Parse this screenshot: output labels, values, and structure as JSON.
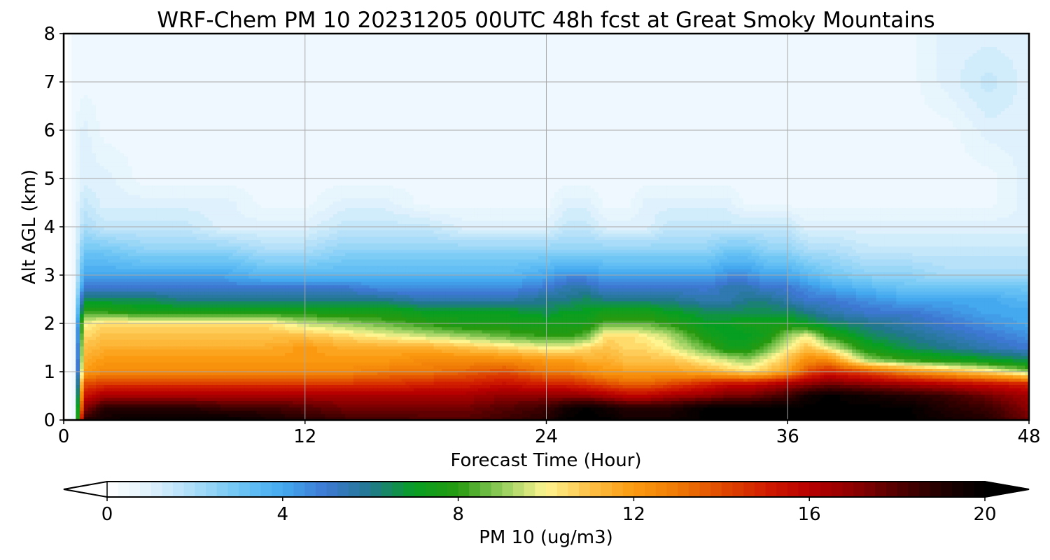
{
  "chart_data": {
    "type": "heatmap",
    "title": "WRF-Chem PM 10  20231205 00UTC 48h fcst at Great Smoky Mountains",
    "xlabel": "Forecast Time (Hour)",
    "ylabel": "Alt AGL (km)",
    "xlim": [
      0,
      48
    ],
    "ylim": [
      0,
      8
    ],
    "x_ticks": [
      0,
      12,
      24,
      36,
      48
    ],
    "y_ticks": [
      0,
      1,
      2,
      3,
      4,
      5,
      6,
      7,
      8
    ],
    "grid": true,
    "colorbar": {
      "label": "PM 10  (ug/m3)",
      "orientation": "horizontal",
      "placement": "bottom",
      "range": [
        0,
        20
      ],
      "ticks": [
        0,
        4,
        8,
        12,
        16,
        20
      ],
      "extend": "both",
      "color_stops": [
        {
          "value": 0,
          "color": "#ffffff"
        },
        {
          "value": 1,
          "color": "#dff1fc"
        },
        {
          "value": 2,
          "color": "#a8dcf8"
        },
        {
          "value": 3,
          "color": "#6fc6f5"
        },
        {
          "value": 4,
          "color": "#44a9ef"
        },
        {
          "value": 5,
          "color": "#3d78d2"
        },
        {
          "value": 6,
          "color": "#21788e"
        },
        {
          "value": 7,
          "color": "#079f22"
        },
        {
          "value": 8,
          "color": "#279a10"
        },
        {
          "value": 9,
          "color": "#93cd5e"
        },
        {
          "value": 10,
          "color": "#fff590"
        },
        {
          "value": 11,
          "color": "#fdc046"
        },
        {
          "value": 12,
          "color": "#fb9a10"
        },
        {
          "value": 13,
          "color": "#ef7a05"
        },
        {
          "value": 14,
          "color": "#e04a00"
        },
        {
          "value": 15,
          "color": "#d11d00"
        },
        {
          "value": 16,
          "color": "#b80000"
        },
        {
          "value": 17,
          "color": "#8e0000"
        },
        {
          "value": 18,
          "color": "#520000"
        },
        {
          "value": 19,
          "color": "#220000"
        },
        {
          "value": 20,
          "color": "#000000"
        }
      ]
    },
    "time_hours": [
      0,
      0.5,
      1,
      2,
      4,
      6,
      8,
      10,
      12,
      14,
      16,
      18,
      20,
      22,
      24,
      25,
      26,
      27,
      28,
      29,
      30,
      32,
      33,
      34,
      35,
      36,
      37,
      38,
      40,
      42,
      44,
      46,
      48
    ],
    "altitude_km": [
      0,
      0.25,
      0.5,
      0.75,
      1,
      1.25,
      1.5,
      1.75,
      2,
      2.25,
      2.5,
      2.75,
      3,
      3.5,
      4,
      4.5,
      5,
      6,
      7,
      8
    ],
    "pm10_ugm3": [
      [
        0,
        0.5,
        19,
        19.5,
        20,
        20,
        20,
        19.5,
        19,
        18.5,
        18.5,
        18,
        18,
        18.5,
        19,
        20,
        20,
        20,
        19.5,
        19.5,
        19.5,
        20,
        20,
        20,
        20,
        20,
        20,
        20,
        20,
        20,
        19.5,
        19,
        17.5
      ],
      [
        0,
        0.5,
        17,
        19,
        19,
        19,
        18.5,
        18.5,
        18,
        17.5,
        17.5,
        17.5,
        17.5,
        18,
        18.5,
        19.5,
        20,
        19.5,
        19,
        19,
        19,
        20,
        20,
        20,
        20,
        20,
        20,
        20,
        20,
        20,
        19,
        18.5,
        17
      ],
      [
        0,
        0.5,
        15.5,
        16.5,
        16.5,
        16.5,
        16.5,
        16.5,
        16.5,
        16.5,
        16.5,
        16.5,
        16.5,
        17,
        17,
        17,
        17,
        16.5,
        16,
        16,
        16.5,
        17,
        17.5,
        17.5,
        18,
        18.5,
        19.5,
        20,
        19.5,
        19,
        18.5,
        17.5,
        16.5
      ],
      [
        0,
        0.5,
        14,
        14.5,
        14.5,
        14.5,
        14.5,
        14.5,
        14.5,
        14.5,
        14.5,
        15,
        15,
        15.5,
        15,
        15,
        14.5,
        14,
        13.5,
        13.5,
        14,
        15,
        15.5,
        15.5,
        16,
        16.5,
        17,
        17.5,
        17,
        16.5,
        16,
        15.5,
        15
      ],
      [
        0,
        0.5,
        12,
        12.5,
        12.5,
        12.5,
        12.5,
        12.5,
        12.5,
        12.5,
        13,
        13,
        13.5,
        14,
        13,
        13,
        12.5,
        12,
        12,
        12,
        12,
        11.5,
        11,
        10.5,
        11,
        12,
        14,
        15,
        14,
        12.5,
        11.5,
        10.5,
        9
      ],
      [
        0,
        0.5,
        11.5,
        12,
        12,
        12,
        12,
        12,
        12,
        12,
        12,
        12.5,
        12.5,
        12.5,
        12,
        12,
        11.5,
        11.5,
        11,
        11,
        11,
        10,
        9.5,
        9,
        10,
        11,
        12.5,
        12.5,
        9,
        8,
        7.5,
        7,
        6.5
      ],
      [
        0,
        0.5,
        11,
        11.5,
        11.5,
        11.5,
        11.5,
        11.5,
        12,
        11.5,
        11.5,
        11.5,
        11,
        10.5,
        10,
        10,
        10.5,
        11,
        10.5,
        10.5,
        10,
        8.5,
        7.5,
        7.5,
        8.5,
        10,
        11,
        10,
        7.5,
        6.5,
        6,
        5.5,
        5
      ],
      [
        0,
        0.5,
        10.5,
        11,
        11,
        11,
        11,
        11,
        11,
        10.5,
        10,
        9.5,
        9,
        8.5,
        8,
        8,
        8.5,
        10.5,
        10.5,
        10,
        9.5,
        7.5,
        7,
        7,
        7.5,
        9,
        10,
        8,
        6.5,
        6,
        5.5,
        5,
        4.5
      ],
      [
        0,
        0.5,
        10,
        10.5,
        10.5,
        10.5,
        10.5,
        10.5,
        9.5,
        9,
        8.5,
        8,
        7.5,
        7.5,
        7.5,
        7.5,
        7.5,
        8.5,
        8.5,
        8.5,
        8,
        7,
        7,
        7.5,
        7.5,
        7.5,
        7,
        6.5,
        6,
        5.5,
        5,
        4.5,
        4
      ],
      [
        0,
        0.5,
        8,
        8,
        7.5,
        7.5,
        7.5,
        7.5,
        7.5,
        7.5,
        7.5,
        7,
        7,
        7,
        6.5,
        7,
        7,
        7.5,
        7.5,
        7.5,
        7,
        6.5,
        6.5,
        6.5,
        6.5,
        6.5,
        6,
        5.5,
        5,
        5,
        4.5,
        4,
        4
      ],
      [
        0,
        0.5,
        6.5,
        6.5,
        6.5,
        6,
        6,
        6,
        6,
        6,
        6,
        5.5,
        5.5,
        5.5,
        6,
        6,
        6.5,
        6,
        6,
        6,
        6,
        5.5,
        5.5,
        6,
        6,
        5.5,
        5,
        5,
        4.5,
        4,
        4,
        4,
        3.5
      ],
      [
        0,
        0.5,
        5,
        5,
        5,
        5,
        5,
        5,
        5,
        5,
        4.5,
        4.5,
        4.5,
        4.5,
        5,
        5.5,
        5.5,
        5,
        5,
        5,
        5,
        5,
        5.5,
        5.5,
        5,
        5,
        4.5,
        4,
        3.5,
        3,
        3,
        3,
        3
      ],
      [
        0,
        0.5,
        4,
        4,
        4,
        4,
        4,
        3.5,
        3.5,
        3.5,
        3.5,
        3.5,
        3.5,
        3.5,
        4,
        4.5,
        4.5,
        4,
        4,
        4,
        4,
        4,
        4.5,
        4.5,
        4,
        4,
        3.5,
        3,
        2.5,
        2.5,
        2,
        2,
        2
      ],
      [
        0,
        0.5,
        3,
        3,
        2.5,
        2.5,
        2.5,
        2,
        2,
        2.5,
        2.5,
        2.5,
        2.5,
        2.5,
        2.5,
        2.5,
        2.5,
        2.5,
        2.5,
        2.5,
        2.5,
        2.5,
        3,
        3,
        2.5,
        2.5,
        2,
        2,
        1.5,
        1.5,
        1.5,
        1.5,
        1.5
      ],
      [
        0,
        0.5,
        2,
        1.5,
        1.5,
        1.5,
        1,
        1,
        1,
        1.5,
        1.5,
        1.5,
        1,
        1,
        1,
        1.5,
        1.5,
        1,
        1,
        1,
        1.5,
        1.5,
        1.5,
        1.5,
        1.5,
        1.5,
        1,
        1,
        1,
        1,
        1,
        1,
        1
      ],
      [
        0,
        0.5,
        1.5,
        1,
        1,
        1,
        1,
        0.5,
        0.5,
        1,
        1,
        0.5,
        0.5,
        0.5,
        0.5,
        1,
        1,
        0.5,
        0.5,
        1,
        1,
        1,
        1,
        0.5,
        0.5,
        0.5,
        0.5,
        0.5,
        0.5,
        0.5,
        0.5,
        0.5,
        1
      ],
      [
        0,
        0.5,
        1,
        1,
        0.5,
        0.5,
        0.5,
        0.5,
        0.5,
        0.5,
        0.5,
        0.5,
        0.5,
        0.5,
        0.5,
        0.5,
        0.5,
        0.5,
        0.5,
        0.5,
        0.5,
        0.5,
        0.5,
        0.5,
        0.5,
        0.5,
        0.5,
        0.5,
        0.5,
        0.5,
        0.5,
        0.5,
        1
      ],
      [
        0,
        0.5,
        1,
        0.5,
        0.5,
        0.5,
        0.5,
        0.5,
        0.5,
        0.5,
        0.5,
        0.5,
        0.5,
        0.5,
        0.5,
        0.5,
        0.5,
        0.5,
        0.5,
        0.5,
        0.5,
        0.5,
        0.5,
        0.5,
        0.5,
        0.5,
        0.5,
        0.5,
        0.5,
        0.5,
        0.5,
        1,
        1
      ],
      [
        0,
        0.5,
        0.5,
        0.5,
        0.5,
        0.5,
        0.5,
        0.5,
        0.5,
        0.5,
        0.5,
        0.5,
        0.5,
        0.5,
        0.5,
        0.5,
        0.5,
        0.5,
        0.5,
        0.5,
        0.5,
        0.5,
        0.5,
        0.5,
        0.5,
        0.5,
        0.5,
        0.5,
        0.5,
        0.5,
        1,
        1.5,
        1
      ],
      [
        0,
        0.5,
        0.5,
        0.5,
        0.5,
        0.5,
        0.5,
        0.5,
        0.5,
        0.5,
        0.5,
        0.5,
        0.5,
        0.5,
        0.5,
        0.5,
        0.5,
        0.5,
        0.5,
        0.5,
        0.5,
        0.5,
        0.5,
        0.5,
        0.5,
        0.5,
        0.5,
        0.5,
        0.5,
        0.5,
        1,
        1,
        1
      ]
    ]
  }
}
